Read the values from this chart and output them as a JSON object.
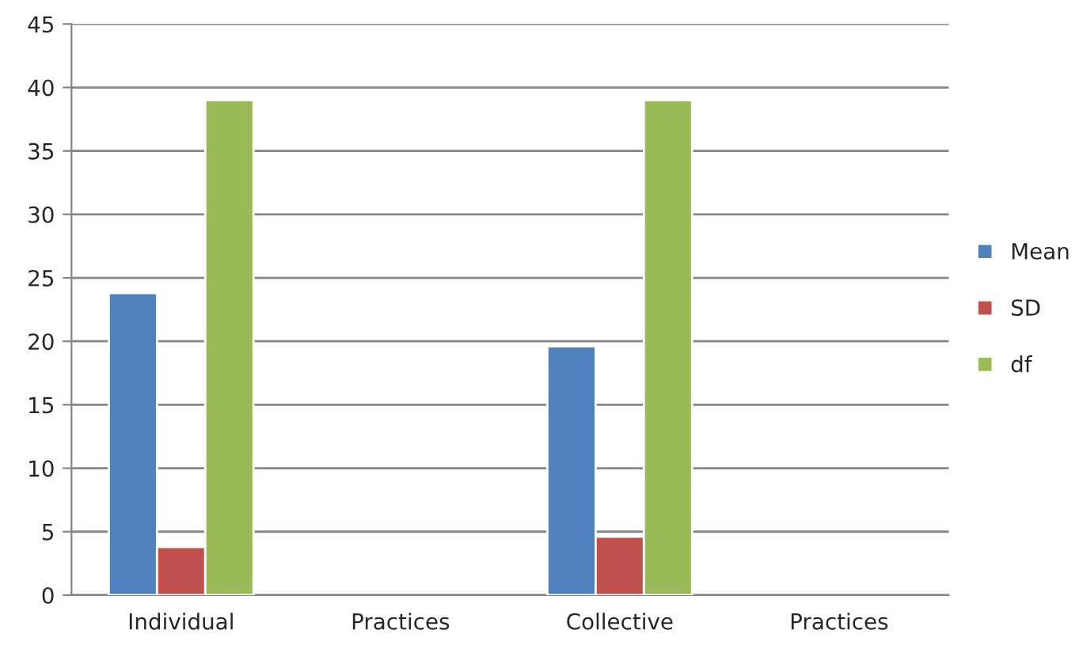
{
  "chart_data": {
    "type": "bar",
    "categories": [
      "Individual",
      "Practices",
      "Collective",
      "Practices"
    ],
    "series": [
      {
        "name": "Mean",
        "color": "#4f81bd",
        "values": [
          23.8,
          null,
          19.6,
          null
        ]
      },
      {
        "name": "SD",
        "color": "#c0504d",
        "values": [
          3.8,
          null,
          4.6,
          null
        ]
      },
      {
        "name": "df",
        "color": "#9bbb59",
        "values": [
          39,
          null,
          39,
          null
        ]
      }
    ],
    "ylim": [
      0,
      45
    ],
    "yticks": [
      0,
      5,
      10,
      15,
      20,
      25,
      30,
      35,
      40,
      45
    ],
    "grid": "y",
    "legend": "right"
  }
}
